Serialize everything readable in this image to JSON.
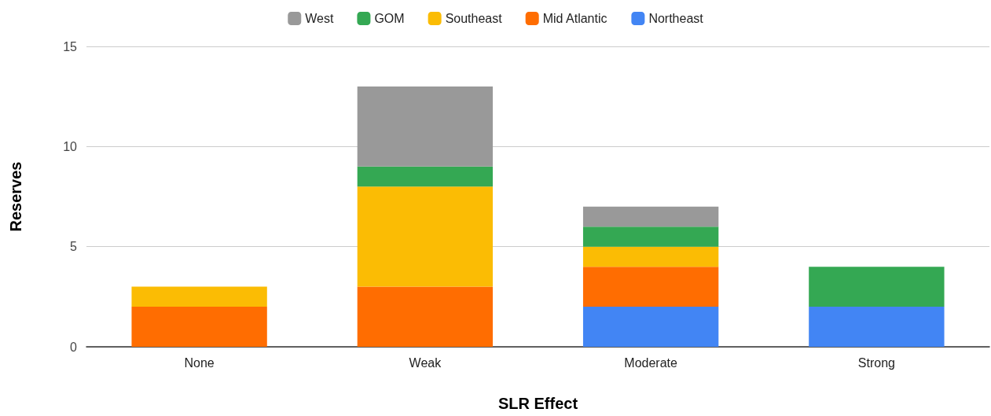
{
  "chart_data": {
    "type": "bar",
    "stacked": true,
    "xlabel": "SLR Effect",
    "ylabel": "Reserves",
    "categories": [
      "None",
      "Weak",
      "Moderate",
      "Strong"
    ],
    "series": [
      {
        "name": "Northeast",
        "color": "#4285f4",
        "values": [
          0,
          0,
          2,
          2
        ]
      },
      {
        "name": "Mid Atlantic",
        "color": "#ff6d01",
        "values": [
          2,
          3,
          2,
          0
        ]
      },
      {
        "name": "Southeast",
        "color": "#fbbc04",
        "values": [
          1,
          5,
          1,
          0
        ]
      },
      {
        "name": "GOM",
        "color": "#34a853",
        "values": [
          0,
          1,
          1,
          2
        ]
      },
      {
        "name": "West",
        "color": "#999999",
        "values": [
          0,
          4,
          1,
          0
        ]
      }
    ],
    "ylim": [
      0,
      15
    ],
    "yticks": [
      0,
      5,
      10,
      15
    ],
    "grid": "y",
    "legend": "top"
  }
}
